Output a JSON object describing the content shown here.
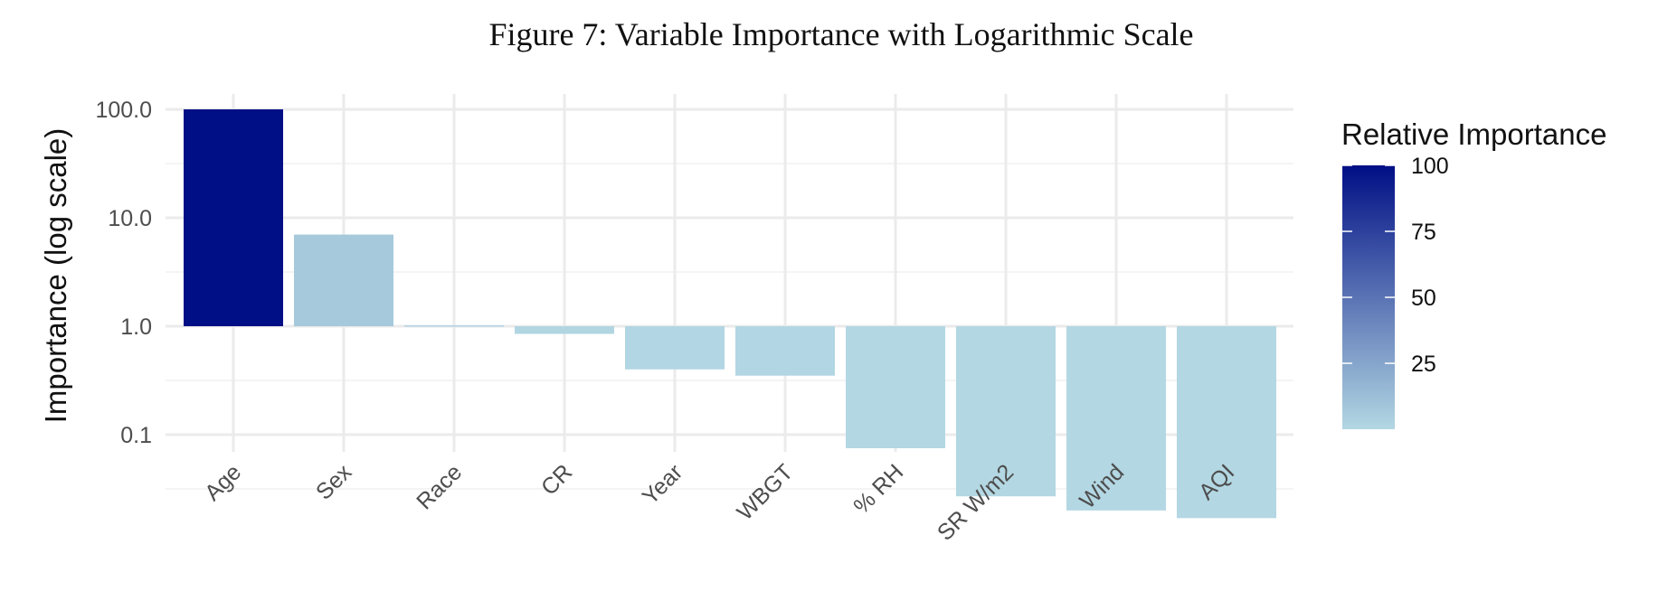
{
  "chart_data": {
    "type": "bar",
    "title": "Figure 7: Variable Importance with Logarithmic Scale",
    "ylabel": "Importance (log scale)",
    "xlabel": "",
    "y_scale": "log10",
    "ylim": [
      0.01,
      100
    ],
    "baseline": 1,
    "y_ticks": [
      {
        "value": 100,
        "label": "100.0"
      },
      {
        "value": 10,
        "label": "10.0"
      },
      {
        "value": 1,
        "label": "1.0"
      },
      {
        "value": 0.1,
        "label": "0.1"
      }
    ],
    "grid": true,
    "categories": [
      "Age",
      "Sex",
      "Race",
      "CR",
      "Year",
      "WBGT",
      "% RH",
      "SR W/m2",
      "Wind",
      "AQI"
    ],
    "values": [
      100,
      7.0,
      1.02,
      0.85,
      0.4,
      0.35,
      0.075,
      0.027,
      0.02,
      0.017
    ],
    "fill_scale": {
      "title": "Relative Importance",
      "low_color": "#b3d7e3",
      "high_color": "#000f85",
      "breaks": [
        100,
        75,
        50,
        25
      ],
      "legend_position": "right"
    }
  }
}
